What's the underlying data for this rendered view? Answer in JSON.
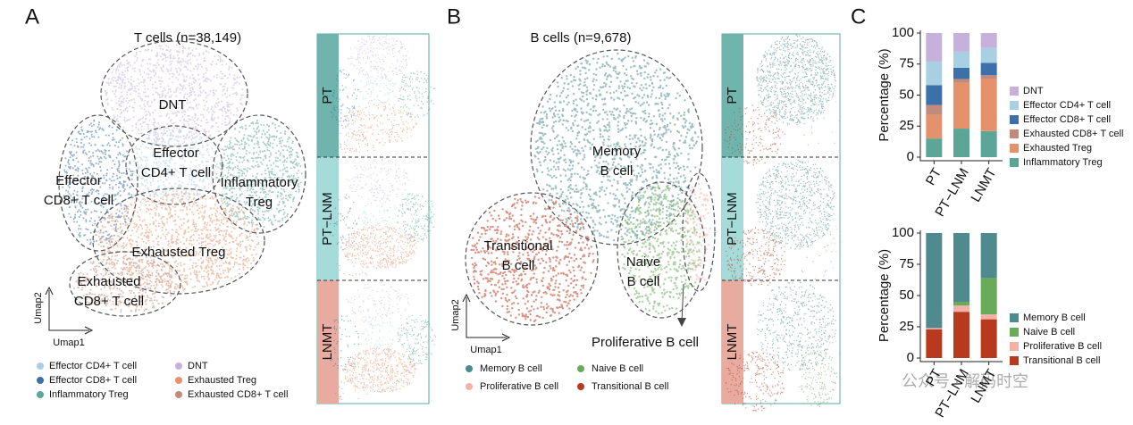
{
  "panel_a": {
    "letter": "A",
    "title": "T cells (n=38,149)",
    "cluster_labels": [
      [
        "DNT"
      ],
      [
        "Effector",
        "CD4+ T cell"
      ],
      [
        "Effector",
        "CD8+ T cell"
      ],
      [
        "Inflammatory",
        "Treg"
      ],
      [
        "Exhausted Treg"
      ],
      [
        "Exhausted",
        "CD8+ T cell"
      ]
    ],
    "umap_y": "Umap2",
    "umap_x": "Umap1"
  },
  "panel_b": {
    "letter": "B",
    "title": "B cells (n=9,678)",
    "cluster_labels": [
      [
        "Memory",
        "B cell"
      ],
      [
        "Transitional",
        "B cell"
      ],
      [
        "Naive",
        "B cell"
      ],
      [
        "Proliferative B cell"
      ]
    ],
    "umap_y": "Umap2",
    "umap_x": "Umap1"
  },
  "panel_c": {
    "letter": "C"
  },
  "watermark": "公众号 · 解码时空",
  "chart_data": [
    {
      "type": "bar",
      "stacked": true,
      "y_label": "Percentage (%)",
      "categories": [
        "PT",
        "PT−LNM",
        "LNMT"
      ],
      "ylim": [
        0,
        100
      ],
      "yticks": [
        0,
        25,
        50,
        75,
        100
      ],
      "series": [
        {
          "name": "Inflammatory Treg",
          "color": "#5ba697",
          "values": [
            15,
            23,
            21
          ]
        },
        {
          "name": "Exhausted Treg",
          "color": "#e4916c",
          "values": [
            19,
            37,
            42
          ]
        },
        {
          "name": "Exhausted CD8+ T cell",
          "color": "#c28b79",
          "values": [
            8,
            3,
            3
          ]
        },
        {
          "name": "Effector CD8+ T cell",
          "color": "#3b70a9",
          "values": [
            16,
            9,
            10
          ]
        },
        {
          "name": "Effector CD4+ T cell",
          "color": "#a9cfe2",
          "values": [
            19,
            13,
            12
          ]
        },
        {
          "name": "DNT",
          "color": "#c6b1da",
          "values": [
            23,
            15,
            12
          ]
        }
      ]
    },
    {
      "type": "bar",
      "stacked": true,
      "y_label": "Percentage (%)",
      "categories": [
        "PT",
        "PT−LNM",
        "LNMT"
      ],
      "ylim": [
        0,
        100
      ],
      "yticks": [
        0,
        25,
        50,
        75,
        100
      ],
      "series": [
        {
          "name": "Transitional B cell",
          "color": "#b83a1e",
          "values": [
            23,
            37,
            31
          ]
        },
        {
          "name": "Proliferative B cell",
          "color": "#f3b2a6",
          "values": [
            1,
            5,
            4
          ]
        },
        {
          "name": "Naive B cell",
          "color": "#6aab5a",
          "values": [
            0,
            3,
            29
          ]
        },
        {
          "name": "Memory B cell",
          "color": "#4e8a8e",
          "values": [
            76,
            55,
            36
          ]
        }
      ]
    }
  ]
}
